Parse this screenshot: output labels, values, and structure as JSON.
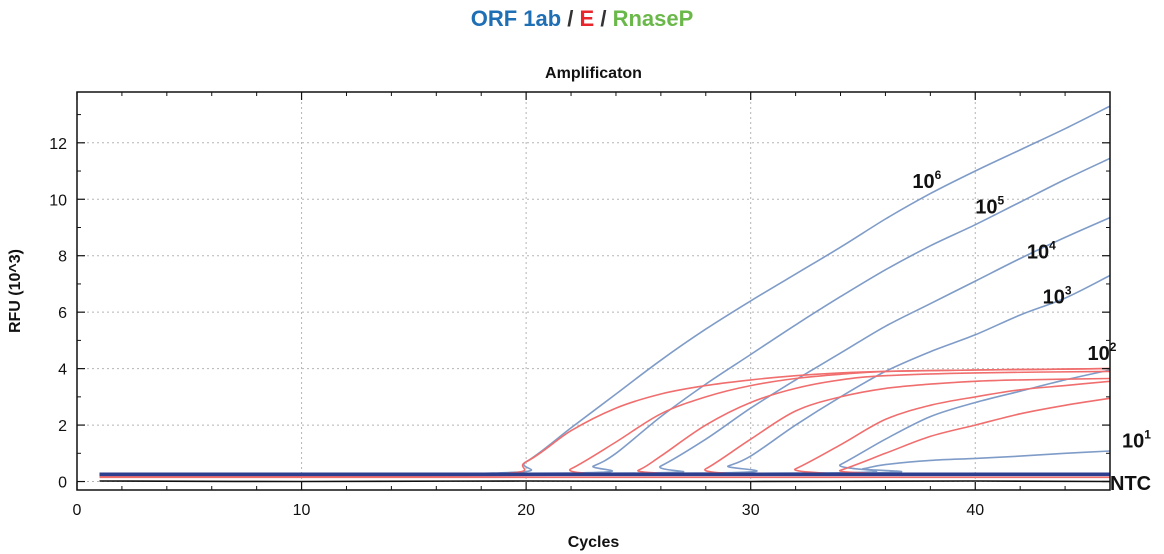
{
  "headline": {
    "part1": "ORF 1ab",
    "sep1": " / ",
    "part2": "E",
    "sep2": " / ",
    "part3": "RnaseP",
    "colors": {
      "part1": "#1f6fb5",
      "part2": "#e8262b",
      "part3": "#6bb84a"
    }
  },
  "chart_data": {
    "type": "line",
    "title": "Amplificaton",
    "xlabel": "Cycles",
    "ylabel": "RFU (10^3)",
    "xlim": [
      0,
      46
    ],
    "ylim": [
      -0.3,
      13.8
    ],
    "xticks": [
      0,
      10,
      20,
      30,
      40
    ],
    "yticks": [
      0,
      2,
      4,
      6,
      8,
      10,
      12
    ],
    "grid": true,
    "labels": [
      {
        "base": "10",
        "exp": "6",
        "x": 37.2,
        "y": 10.4
      },
      {
        "base": "10",
        "exp": "5",
        "x": 40.0,
        "y": 9.5
      },
      {
        "base": "10",
        "exp": "4",
        "x": 42.3,
        "y": 7.9
      },
      {
        "base": "10",
        "exp": "3",
        "x": 43.0,
        "y": 6.3
      },
      {
        "base": "10",
        "exp": "2",
        "x": 45.0,
        "y": 4.3
      },
      {
        "base": "10",
        "exp": "1",
        "x": 47.0,
        "y": 1.2
      },
      {
        "base": "NTC",
        "exp": "",
        "x": 47.0,
        "y": -0.3
      }
    ],
    "series": [
      {
        "group": "ORF 1ab",
        "color": "#7f9cc8",
        "x": [
          1,
          18.5,
          20,
          22,
          24,
          26,
          28,
          30,
          32,
          34,
          36,
          38,
          40,
          42,
          44,
          46
        ],
        "y": [
          0.25,
          0.3,
          0.7,
          1.9,
          3.1,
          4.3,
          5.4,
          6.4,
          7.35,
          8.3,
          9.3,
          10.2,
          11.0,
          11.75,
          12.5,
          13.3
        ]
      },
      {
        "group": "ORF 1ab",
        "color": "#7f9cc8",
        "x": [
          1,
          22,
          23,
          24,
          26,
          28,
          30,
          32,
          34,
          36,
          38,
          40,
          42,
          44,
          46
        ],
        "y": [
          0.25,
          0.3,
          0.55,
          1.0,
          2.3,
          3.45,
          4.5,
          5.55,
          6.55,
          7.5,
          8.35,
          9.1,
          9.9,
          10.7,
          11.45
        ]
      },
      {
        "group": "ORF 1ab",
        "color": "#7f9cc8",
        "x": [
          1,
          25,
          26,
          28,
          30,
          32,
          34,
          36,
          38,
          40,
          42,
          44,
          46
        ],
        "y": [
          0.25,
          0.3,
          0.55,
          1.5,
          2.6,
          3.6,
          4.55,
          5.5,
          6.3,
          7.1,
          7.9,
          8.65,
          9.35
        ]
      },
      {
        "group": "ORF 1ab",
        "color": "#7f9cc8",
        "x": [
          1,
          28,
          29,
          30,
          32,
          34,
          36,
          38,
          40,
          42,
          44,
          46
        ],
        "y": [
          0.25,
          0.3,
          0.55,
          0.9,
          2.0,
          3.0,
          3.9,
          4.6,
          5.2,
          5.9,
          6.5,
          7.3
        ]
      },
      {
        "group": "ORF 1ab",
        "color": "#7f9cc8",
        "x": [
          1,
          33,
          34,
          36,
          38,
          40,
          42,
          44,
          46
        ],
        "y": [
          0.25,
          0.3,
          0.6,
          1.5,
          2.3,
          2.8,
          3.2,
          3.6,
          3.95
        ]
      },
      {
        "group": "ORF 1ab",
        "color": "#7f9cc8",
        "x": [
          1,
          34,
          35,
          36,
          38,
          40,
          42,
          44,
          46
        ],
        "y": [
          0.25,
          0.3,
          0.45,
          0.6,
          0.75,
          0.82,
          0.9,
          1.0,
          1.08
        ]
      },
      {
        "group": "E",
        "color": "#f06e6e",
        "x": [
          1,
          18,
          20,
          22,
          24,
          26,
          28,
          30,
          32,
          34,
          36,
          40,
          46
        ],
        "y": [
          0.2,
          0.25,
          0.7,
          1.8,
          2.6,
          3.1,
          3.4,
          3.6,
          3.75,
          3.85,
          3.9,
          3.95,
          4.0
        ]
      },
      {
        "group": "E",
        "color": "#f06e6e",
        "x": [
          1,
          21,
          22,
          24,
          26,
          28,
          30,
          32,
          34,
          36,
          40,
          46
        ],
        "y": [
          0.2,
          0.25,
          0.45,
          1.4,
          2.4,
          3.0,
          3.4,
          3.65,
          3.8,
          3.9,
          3.95,
          4.0
        ]
      },
      {
        "group": "E",
        "color": "#f06e6e",
        "x": [
          1,
          24,
          25,
          26,
          28,
          30,
          32,
          34,
          36,
          40,
          46
        ],
        "y": [
          0.2,
          0.25,
          0.4,
          0.9,
          2.0,
          2.8,
          3.3,
          3.6,
          3.75,
          3.85,
          3.9
        ]
      },
      {
        "group": "E",
        "color": "#f06e6e",
        "x": [
          1,
          27,
          28,
          30,
          32,
          34,
          36,
          38,
          40,
          42,
          46
        ],
        "y": [
          0.2,
          0.25,
          0.45,
          1.5,
          2.5,
          3.0,
          3.3,
          3.45,
          3.55,
          3.6,
          3.65
        ]
      },
      {
        "group": "E",
        "color": "#f06e6e",
        "x": [
          1,
          31,
          32,
          34,
          36,
          38,
          40,
          42,
          44,
          46
        ],
        "y": [
          0.2,
          0.25,
          0.45,
          1.3,
          2.2,
          2.7,
          3.0,
          3.25,
          3.4,
          3.55
        ]
      },
      {
        "group": "E",
        "color": "#f06e6e",
        "x": [
          1,
          33,
          34,
          36,
          38,
          40,
          42,
          44,
          46
        ],
        "y": [
          0.2,
          0.25,
          0.4,
          1.0,
          1.6,
          2.0,
          2.4,
          2.7,
          2.95
        ]
      },
      {
        "group": "E",
        "color": "#f06e6e",
        "x": [
          1,
          46
        ],
        "y": [
          0.15,
          0.15
        ]
      },
      {
        "group": "RnaseP",
        "color": "#2f3f8f",
        "x": [
          1,
          46
        ],
        "y": [
          0.28,
          0.28
        ]
      },
      {
        "group": "RnaseP",
        "color": "#2f3f8f",
        "x": [
          1,
          46
        ],
        "y": [
          0.23,
          0.23
        ]
      },
      {
        "group": "NTC",
        "color": "#111111",
        "x": [
          1,
          10,
          20,
          30,
          40,
          46
        ],
        "y": [
          0.02,
          0.0,
          0.02,
          0.0,
          0.02,
          0.0
        ]
      }
    ]
  }
}
